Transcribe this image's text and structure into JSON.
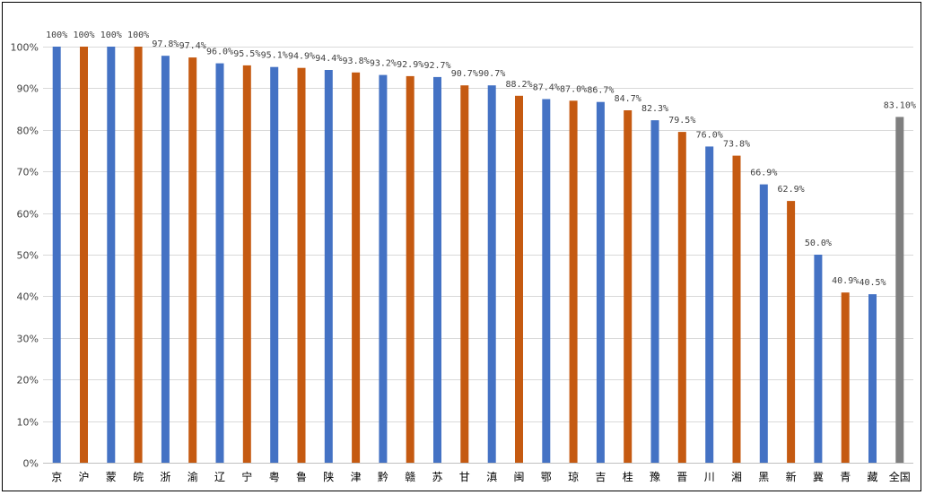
{
  "chart_data": {
    "type": "bar",
    "title": "",
    "xlabel": "",
    "ylabel": "",
    "ylim": [
      0,
      100
    ],
    "yticks": [
      "0%",
      "10%",
      "20%",
      "30%",
      "40%",
      "50%",
      "60%",
      "70%",
      "80%",
      "90%",
      "100%"
    ],
    "grid": true,
    "legend": "none",
    "categories": [
      "京",
      "沪",
      "蒙",
      "皖",
      "浙",
      "渝",
      "辽",
      "宁",
      "粤",
      "鲁",
      "陕",
      "津",
      "黔",
      "赣",
      "苏",
      "甘",
      "滇",
      "闽",
      "鄂",
      "琼",
      "吉",
      "桂",
      "豫",
      "晋",
      "川",
      "湘",
      "黑",
      "新",
      "冀",
      "青",
      "藏",
      "全国"
    ],
    "values": [
      100,
      100,
      100,
      100,
      97.8,
      97.4,
      96.0,
      95.5,
      95.1,
      94.9,
      94.4,
      93.8,
      93.2,
      92.9,
      92.7,
      90.7,
      90.7,
      88.2,
      87.4,
      87.0,
      86.7,
      84.7,
      82.3,
      79.5,
      76.0,
      73.8,
      66.9,
      62.9,
      50.0,
      40.9,
      40.5,
      83.1
    ],
    "data_labels": [
      "100%",
      "100%",
      "100%",
      "100%",
      "97.8%",
      "97.4%",
      "96.0%",
      "95.5%",
      "95.1%",
      "94.9%",
      "94.4%",
      "93.8%",
      "93.2%",
      "92.9%",
      "92.7%",
      "90.7%",
      "90.7%",
      "88.2%",
      "87.4%",
      "87.0%",
      "86.7%",
      "84.7%",
      "82.3%",
      "79.5%",
      "76.0%",
      "73.8%",
      "66.9%",
      "62.9%",
      "50.0%",
      "40.9%",
      "40.5%",
      "83.10%"
    ],
    "colors": {
      "blue": "#4472c4",
      "orange": "#c55a11",
      "gray": "#7f7f7f",
      "grid": "#d9d9d9",
      "axis": "#bfbfbf"
    },
    "bar_colors": [
      "blue",
      "orange",
      "blue",
      "orange",
      "blue",
      "orange",
      "blue",
      "orange",
      "blue",
      "orange",
      "blue",
      "orange",
      "blue",
      "orange",
      "blue",
      "orange",
      "blue",
      "orange",
      "blue",
      "orange",
      "blue",
      "orange",
      "blue",
      "orange",
      "blue",
      "orange",
      "blue",
      "orange",
      "blue",
      "orange",
      "blue",
      "gray"
    ]
  }
}
